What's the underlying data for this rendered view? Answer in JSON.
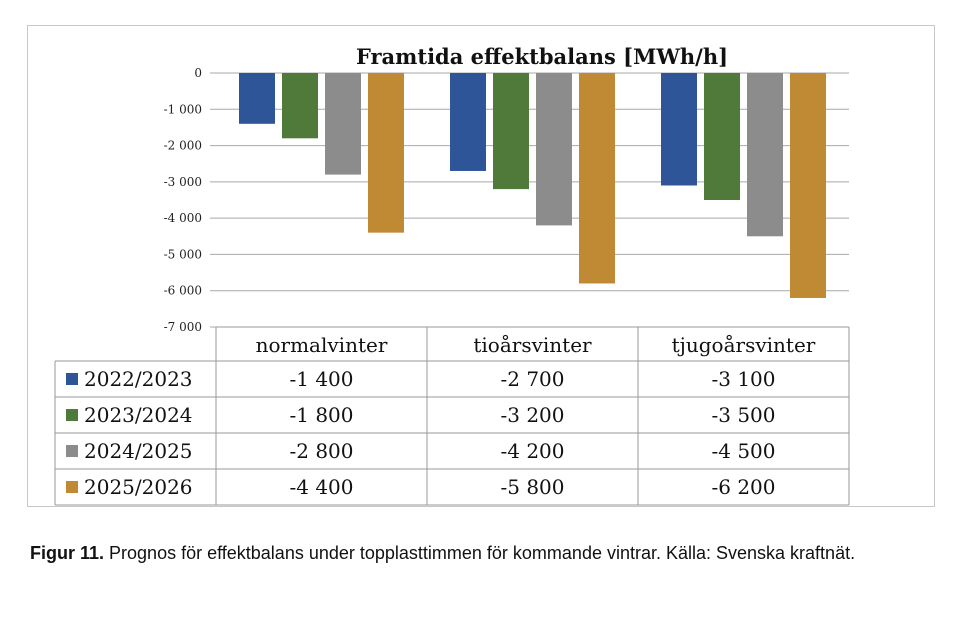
{
  "chart_data": {
    "type": "bar",
    "title": "Framtida effektbalans [MWh/h]",
    "categories": [
      "normalvinter",
      "tioårsvinter",
      "tjugoårsvinter"
    ],
    "series": [
      {
        "name": "2022/2023",
        "color": "#2e5597",
        "values": [
          -1400,
          -2700,
          -3100
        ],
        "labels": [
          "-1 400",
          "-2 700",
          "-3 100"
        ]
      },
      {
        "name": "2023/2024",
        "color": "#4f7a3a",
        "values": [
          -1800,
          -3200,
          -3500
        ],
        "labels": [
          "-1 800",
          "-3 200",
          "-3 500"
        ]
      },
      {
        "name": "2024/2025",
        "color": "#8c8c8c",
        "values": [
          -2800,
          -4200,
          -4500
        ],
        "labels": [
          "-2 800",
          "-4 200",
          "-4 500"
        ]
      },
      {
        "name": "2025/2026",
        "color": "#c08a35",
        "values": [
          -4400,
          -5800,
          -6200
        ],
        "labels": [
          "-4 400",
          "-5 800",
          "-6 200"
        ]
      }
    ],
    "ylim": [
      -7000,
      0
    ],
    "yticks": [
      0,
      -1000,
      -2000,
      -3000,
      -4000,
      -5000,
      -6000,
      -7000
    ],
    "ytick_labels": [
      "0",
      "-1 000",
      "-2 000",
      "-3 000",
      "-4 000",
      "-5 000",
      "-6 000",
      "-7 000"
    ],
    "grid": true,
    "data_table": true
  },
  "caption": {
    "label": "Figur 11.",
    "text": " Prognos för effektbalans under topplasttimmen för kommande vintrar. Källa: Svenska kraftnät."
  }
}
